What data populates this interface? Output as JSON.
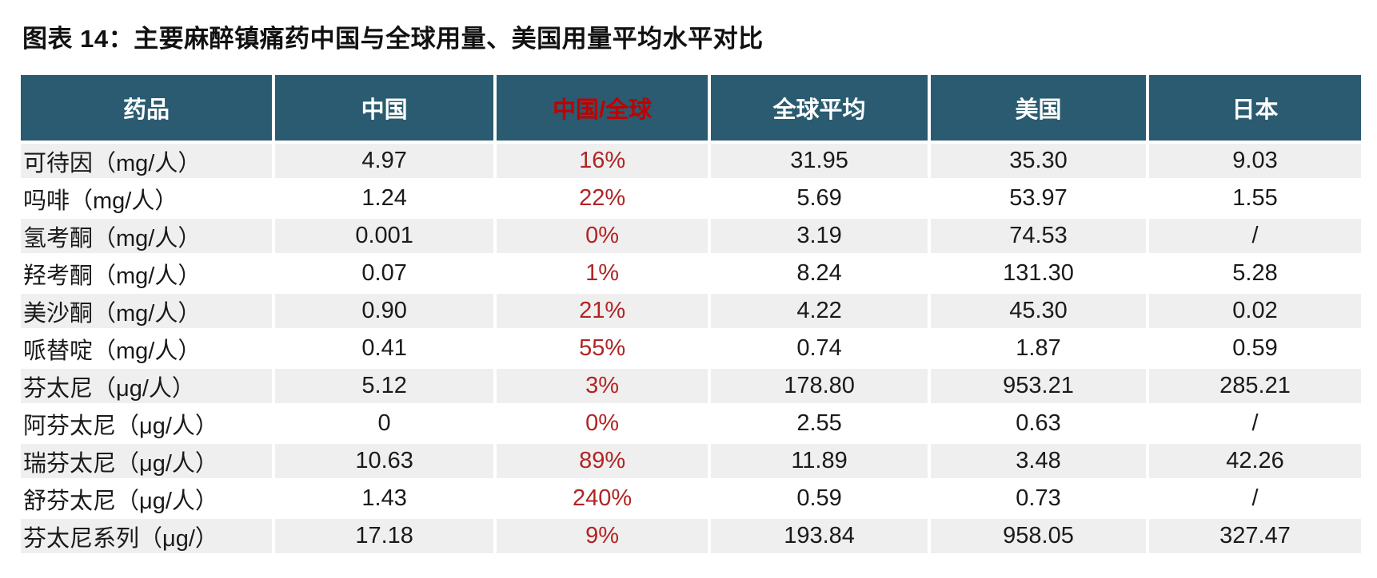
{
  "title": "图表 14：主要麻醉镇痛药中国与全球用量、美国用量平均水平对比",
  "colors": {
    "header_bg": "#2A5B70",
    "header_text": "#FFFFFF",
    "header_ratio_red": "#C00000",
    "percent_red": "#B22424",
    "row_alt_gray": "#EFEFEF",
    "body_text": "#1A1A1A"
  },
  "chart_data": {
    "type": "table",
    "columns": [
      "药品",
      "中国",
      "中国/全球",
      "全球平均",
      "美国",
      "日本"
    ],
    "ratio_column_index": 2,
    "rows": [
      [
        "可待因（mg/人）",
        "4.97",
        "16%",
        "31.95",
        "35.30",
        "9.03"
      ],
      [
        "吗啡（mg/人）",
        "1.24",
        "22%",
        "5.69",
        "53.97",
        "1.55"
      ],
      [
        "氢考酮（mg/人）",
        "0.001",
        "0%",
        "3.19",
        "74.53",
        "/"
      ],
      [
        "羟考酮（mg/人）",
        "0.07",
        "1%",
        "8.24",
        "131.30",
        "5.28"
      ],
      [
        "美沙酮（mg/人）",
        "0.90",
        "21%",
        "4.22",
        "45.30",
        "0.02"
      ],
      [
        "哌替啶（mg/人）",
        "0.41",
        "55%",
        "0.74",
        "1.87",
        "0.59"
      ],
      [
        "芬太尼（μg/人）",
        "5.12",
        "3%",
        "178.80",
        "953.21",
        "285.21"
      ],
      [
        "阿芬太尼（μg/人）",
        "0",
        "0%",
        "2.55",
        "0.63",
        "/"
      ],
      [
        "瑞芬太尼（μg/人）",
        "10.63",
        "89%",
        "11.89",
        "3.48",
        "42.26"
      ],
      [
        "舒芬太尼（μg/人）",
        "1.43",
        "240%",
        "0.59",
        "0.73",
        "/"
      ],
      [
        "芬太尼系列（μg/）",
        "17.18",
        "9%",
        "193.84",
        "958.05",
        "327.47"
      ]
    ]
  }
}
